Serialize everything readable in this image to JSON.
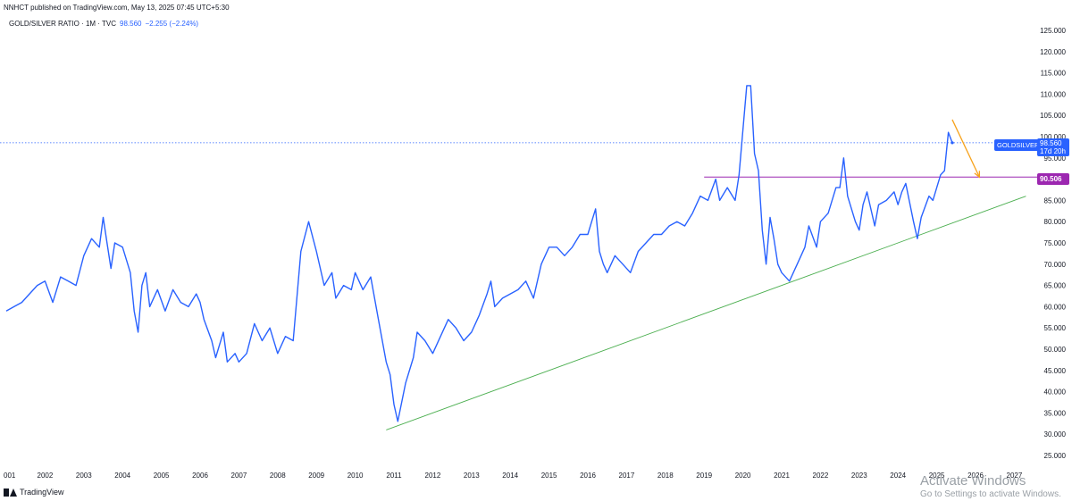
{
  "header": {
    "published_line": "NNHCT published on TradingView.com, May 13, 2025 07:45 UTC+5:30",
    "symbol_label": "GOLD/SILVER RATIO · 1M · TVC",
    "last_value": "98.560",
    "change": "−2.255 (−2.24%)"
  },
  "badges": {
    "symbol": "GOLDSILVER",
    "price": "98.560",
    "countdown": "17d 20h",
    "level": "90.506"
  },
  "footer": {
    "brand": "TradingView"
  },
  "watermark": {
    "title": "Activate Windows",
    "subtitle": "Go to Settings to activate Windows."
  },
  "colors": {
    "series": "#2962ff",
    "price_line": "#2962ff",
    "resistance": "#9c27b0",
    "trendline": "#4caf50",
    "arrow": "#f7a21b",
    "axis_text": "#131722"
  },
  "chart_data": {
    "type": "line",
    "title": "GOLD/SILVER RATIO · 1M · TVC",
    "xlabel": "",
    "ylabel": "",
    "ylim": [
      25,
      125
    ],
    "x_tick_labels": [
      "001",
      "2002",
      "2003",
      "2004",
      "2005",
      "2006",
      "2007",
      "2008",
      "2009",
      "2010",
      "2011",
      "2012",
      "2013",
      "2014",
      "2015",
      "2016",
      "2017",
      "2018",
      "2019",
      "2020",
      "2021",
      "2022",
      "2023",
      "2024",
      "2025",
      "2026",
      "2027"
    ],
    "y_tick_labels": [
      "25.000",
      "30.000",
      "35.000",
      "40.000",
      "45.000",
      "50.000",
      "55.000",
      "60.000",
      "65.000",
      "70.000",
      "75.000",
      "80.000",
      "85.000",
      "90.000",
      "95.000",
      "100.000",
      "105.000",
      "110.000",
      "115.000",
      "120.000",
      "125.000"
    ],
    "series": [
      {
        "values": [
          [
            2001.0,
            59
          ],
          [
            2001.2,
            60
          ],
          [
            2001.4,
            61
          ],
          [
            2001.6,
            63
          ],
          [
            2001.8,
            65
          ],
          [
            2002.0,
            66
          ],
          [
            2002.2,
            61
          ],
          [
            2002.4,
            67
          ],
          [
            2002.6,
            66
          ],
          [
            2002.8,
            65
          ],
          [
            2003.0,
            72
          ],
          [
            2003.2,
            76
          ],
          [
            2003.4,
            74
          ],
          [
            2003.5,
            81
          ],
          [
            2003.6,
            75
          ],
          [
            2003.7,
            69
          ],
          [
            2003.8,
            75
          ],
          [
            2004.0,
            74
          ],
          [
            2004.2,
            68
          ],
          [
            2004.3,
            59
          ],
          [
            2004.4,
            54
          ],
          [
            2004.5,
            65
          ],
          [
            2004.6,
            68
          ],
          [
            2004.7,
            60
          ],
          [
            2004.9,
            64
          ],
          [
            2005.1,
            59
          ],
          [
            2005.3,
            64
          ],
          [
            2005.5,
            61
          ],
          [
            2005.7,
            60
          ],
          [
            2005.9,
            63
          ],
          [
            2006.0,
            61
          ],
          [
            2006.1,
            57
          ],
          [
            2006.3,
            52
          ],
          [
            2006.4,
            48
          ],
          [
            2006.6,
            54
          ],
          [
            2006.7,
            47
          ],
          [
            2006.9,
            49
          ],
          [
            2007.0,
            47
          ],
          [
            2007.2,
            49
          ],
          [
            2007.4,
            56
          ],
          [
            2007.6,
            52
          ],
          [
            2007.8,
            55
          ],
          [
            2008.0,
            49
          ],
          [
            2008.2,
            53
          ],
          [
            2008.4,
            52
          ],
          [
            2008.6,
            73
          ],
          [
            2008.8,
            80
          ],
          [
            2009.0,
            73
          ],
          [
            2009.2,
            65
          ],
          [
            2009.4,
            68
          ],
          [
            2009.5,
            62
          ],
          [
            2009.7,
            65
          ],
          [
            2009.9,
            64
          ],
          [
            2010.0,
            68
          ],
          [
            2010.2,
            64
          ],
          [
            2010.4,
            67
          ],
          [
            2010.6,
            57
          ],
          [
            2010.8,
            47
          ],
          [
            2010.9,
            44
          ],
          [
            2011.0,
            37
          ],
          [
            2011.1,
            33
          ],
          [
            2011.3,
            42
          ],
          [
            2011.5,
            48
          ],
          [
            2011.6,
            54
          ],
          [
            2011.8,
            52
          ],
          [
            2012.0,
            49
          ],
          [
            2012.2,
            53
          ],
          [
            2012.4,
            57
          ],
          [
            2012.6,
            55
          ],
          [
            2012.8,
            52
          ],
          [
            2013.0,
            54
          ],
          [
            2013.2,
            58
          ],
          [
            2013.4,
            63
          ],
          [
            2013.5,
            66
          ],
          [
            2013.6,
            60
          ],
          [
            2013.8,
            62
          ],
          [
            2014.0,
            63
          ],
          [
            2014.2,
            64
          ],
          [
            2014.4,
            66
          ],
          [
            2014.6,
            62
          ],
          [
            2014.8,
            70
          ],
          [
            2015.0,
            74
          ],
          [
            2015.2,
            74
          ],
          [
            2015.4,
            72
          ],
          [
            2015.6,
            74
          ],
          [
            2015.8,
            77
          ],
          [
            2016.0,
            77
          ],
          [
            2016.1,
            80
          ],
          [
            2016.2,
            83
          ],
          [
            2016.3,
            73
          ],
          [
            2016.4,
            70
          ],
          [
            2016.5,
            68
          ],
          [
            2016.7,
            72
          ],
          [
            2016.9,
            70
          ],
          [
            2017.1,
            68
          ],
          [
            2017.3,
            73
          ],
          [
            2017.5,
            75
          ],
          [
            2017.7,
            77
          ],
          [
            2017.9,
            77
          ],
          [
            2018.1,
            79
          ],
          [
            2018.3,
            80
          ],
          [
            2018.5,
            79
          ],
          [
            2018.7,
            82
          ],
          [
            2018.9,
            86
          ],
          [
            2019.1,
            85
          ],
          [
            2019.3,
            90
          ],
          [
            2019.4,
            85
          ],
          [
            2019.6,
            88
          ],
          [
            2019.8,
            85
          ],
          [
            2019.9,
            91
          ],
          [
            2020.1,
            112
          ],
          [
            2020.2,
            112
          ],
          [
            2020.3,
            96
          ],
          [
            2020.4,
            92
          ],
          [
            2020.5,
            78
          ],
          [
            2020.6,
            70
          ],
          [
            2020.7,
            81
          ],
          [
            2020.8,
            76
          ],
          [
            2020.9,
            70
          ],
          [
            2021.0,
            68
          ],
          [
            2021.2,
            66
          ],
          [
            2021.4,
            70
          ],
          [
            2021.6,
            74
          ],
          [
            2021.7,
            79
          ],
          [
            2021.9,
            74
          ],
          [
            2022.0,
            80
          ],
          [
            2022.2,
            82
          ],
          [
            2022.4,
            88
          ],
          [
            2022.5,
            88
          ],
          [
            2022.6,
            95
          ],
          [
            2022.7,
            86
          ],
          [
            2022.9,
            80
          ],
          [
            2023.0,
            78
          ],
          [
            2023.1,
            84
          ],
          [
            2023.2,
            87
          ],
          [
            2023.4,
            79
          ],
          [
            2023.5,
            84
          ],
          [
            2023.7,
            85
          ],
          [
            2023.9,
            87
          ],
          [
            2024.0,
            84
          ],
          [
            2024.1,
            87
          ],
          [
            2024.2,
            89
          ],
          [
            2024.4,
            80
          ],
          [
            2024.5,
            76
          ],
          [
            2024.6,
            81
          ],
          [
            2024.8,
            86
          ],
          [
            2024.9,
            85
          ],
          [
            2025.0,
            88
          ],
          [
            2025.1,
            91
          ],
          [
            2025.2,
            92
          ],
          [
            2025.3,
            101
          ],
          [
            2025.4,
            98.56
          ]
        ]
      }
    ],
    "annotations": {
      "last_price": 98.56,
      "horizontal_level": {
        "value": 90.506,
        "x_start": 2019.0,
        "x_end": 2027.6
      },
      "trendline": {
        "from": [
          2010.8,
          31
        ],
        "to": [
          2027.3,
          86
        ]
      },
      "arrow": {
        "from": [
          2025.4,
          104
        ],
        "to": [
          2026.1,
          90.5
        ]
      }
    },
    "grid": false,
    "legend": "none"
  }
}
